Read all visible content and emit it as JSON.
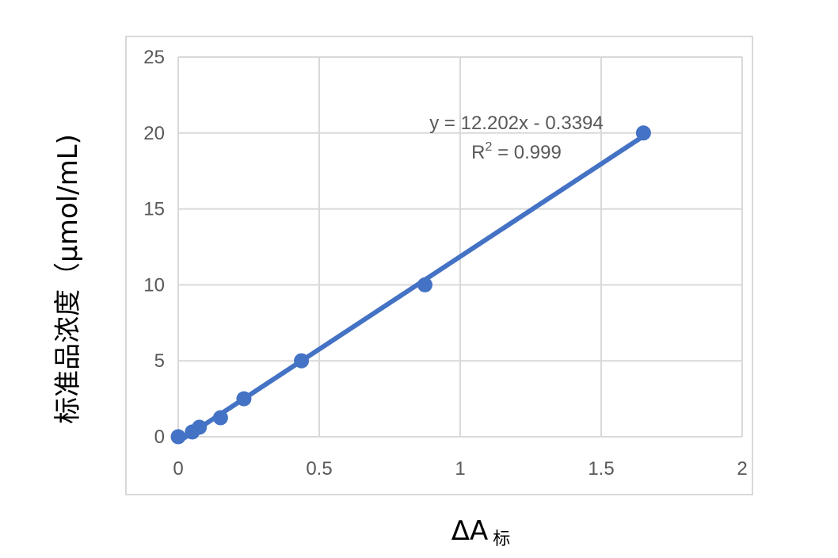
{
  "chart_data": {
    "type": "scatter",
    "title": "",
    "xlabel": "ΔA",
    "xlabel_subscript": "标",
    "ylabel": "标准品浓度（μmol/mL)",
    "xlim": [
      0,
      2
    ],
    "ylim": [
      0,
      25
    ],
    "x_ticks": [
      "0",
      "0.5",
      "1",
      "1.5",
      "2"
    ],
    "y_ticks": [
      "0",
      "5",
      "10",
      "15",
      "20",
      "25"
    ],
    "grid": {
      "horizontal": true,
      "vertical": true
    },
    "legend": "none",
    "series": [
      {
        "x": [
          0.0,
          0.05,
          0.075,
          0.15,
          0.233,
          0.437,
          0.875,
          1.65
        ],
        "y": [
          0.0,
          0.3125,
          0.625,
          1.25,
          2.5,
          5.0,
          10.0,
          20.0
        ]
      }
    ],
    "trendline": {
      "slope": 12.202,
      "intercept": -0.3394,
      "equation": "y = 12.202x - 0.3394",
      "r2_prefix": "R",
      "r2_sup": "2",
      "r2_value": " = 0.999"
    },
    "colors": {
      "series": "#4472C4",
      "grid": "#D9D9D9",
      "border": "#D9D9D9",
      "text": "#595959"
    }
  }
}
